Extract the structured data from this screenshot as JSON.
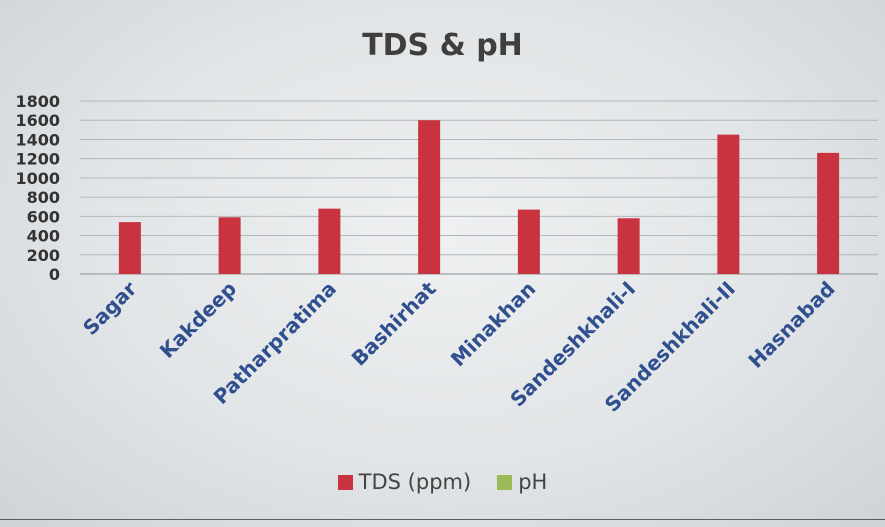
{
  "chart_data": {
    "type": "bar",
    "title": "TDS & pH",
    "categories": [
      "Sagar",
      "Kakdeep",
      "Patharpratima",
      "Bashirhat",
      "Minakhan",
      "Sandeshkhali-I",
      "Sandeshkhali-II",
      "Hasnabad"
    ],
    "series": [
      {
        "name": "TDS (ppm)",
        "color": "#c9333f",
        "values": [
          540,
          590,
          680,
          1600,
          670,
          580,
          1450,
          1260
        ]
      },
      {
        "name": "pH",
        "color": "#9bbb59",
        "values": [
          8,
          8,
          8,
          8,
          8,
          8,
          8,
          8
        ]
      }
    ],
    "ylim": [
      0,
      1800
    ],
    "yticks": [
      0,
      200,
      400,
      600,
      800,
      1000,
      1200,
      1400,
      1600,
      1800
    ],
    "ytick_labels": [
      "0",
      "200",
      "400",
      "600",
      "800",
      "1000",
      "1200",
      "1400",
      "1600",
      "1800"
    ],
    "grid": true,
    "legend": "bottom",
    "xlabel": "",
    "ylabel": "",
    "category_label_color": "#2f4f8f"
  }
}
